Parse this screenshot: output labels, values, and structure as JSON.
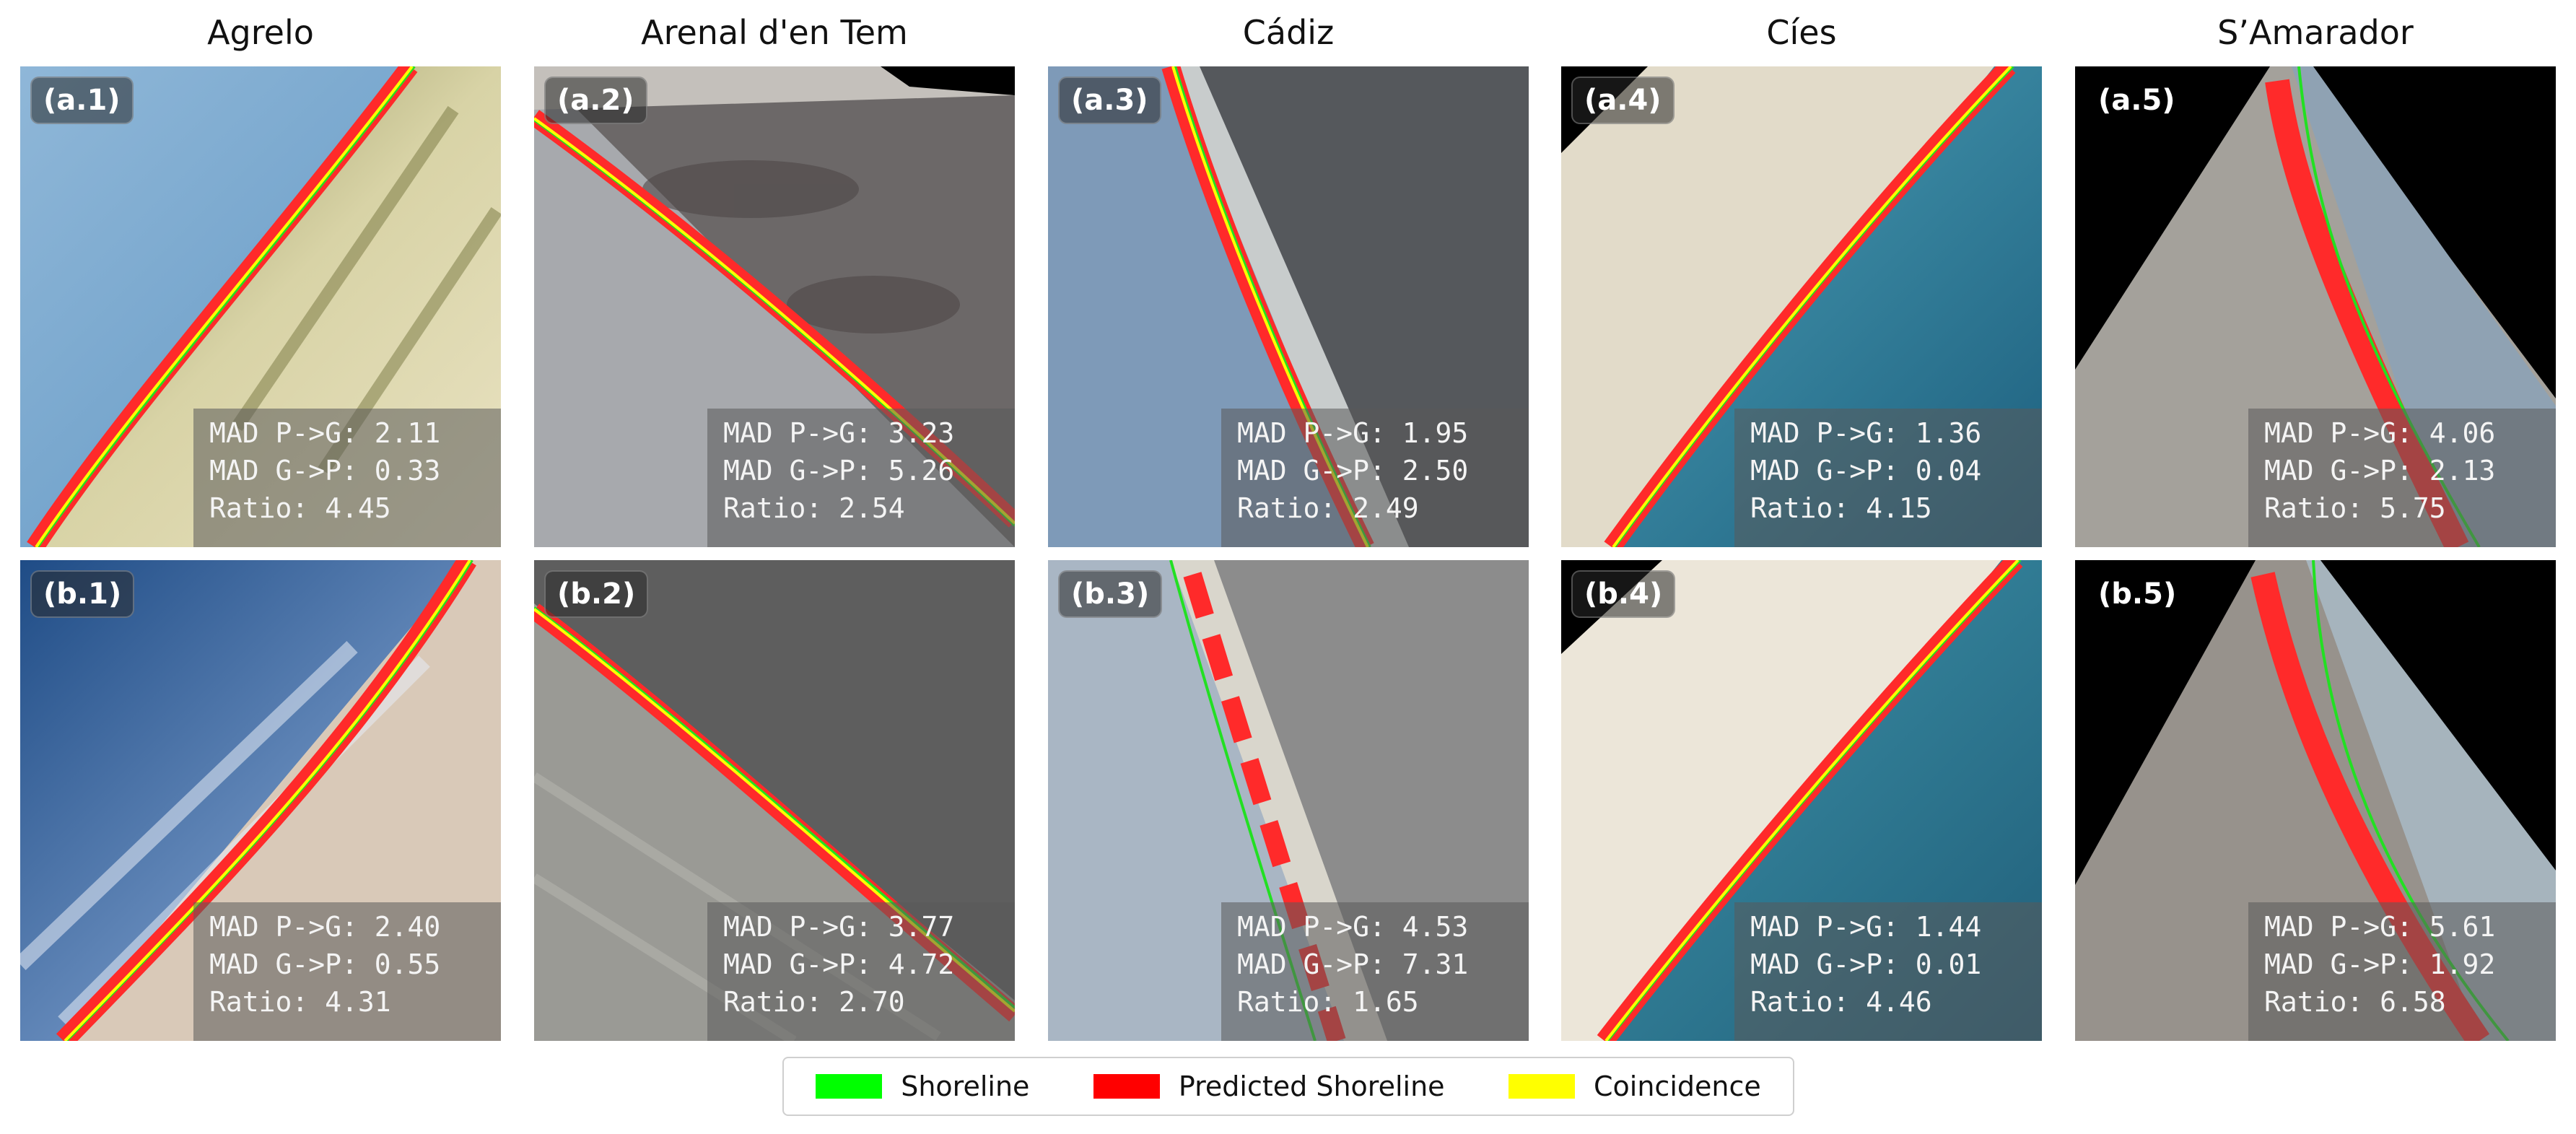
{
  "columns": [
    {
      "title": "Agrelo"
    },
    {
      "title": "Arenal d'en Tem"
    },
    {
      "title": "Cádiz"
    },
    {
      "title": "Cíes"
    },
    {
      "title": "S’Amarador"
    }
  ],
  "rows": [
    {
      "panels": [
        {
          "label": "(a.1)",
          "mad_pg": "MAD P->G: 2.11",
          "mad_gp": "MAD G->P: 0.33",
          "ratio": "Ratio: 4.45"
        },
        {
          "label": "(a.2)",
          "mad_pg": "MAD P->G: 3.23",
          "mad_gp": "MAD G->P: 5.26",
          "ratio": "Ratio: 2.54"
        },
        {
          "label": "(a.3)",
          "mad_pg": "MAD P->G: 1.95",
          "mad_gp": "MAD G->P: 2.50",
          "ratio": "Ratio: 2.49"
        },
        {
          "label": "(a.4)",
          "mad_pg": "MAD P->G: 1.36",
          "mad_gp": "MAD G->P: 0.04",
          "ratio": "Ratio: 4.15"
        },
        {
          "label": "(a.5)",
          "mad_pg": "MAD P->G: 4.06",
          "mad_gp": "MAD G->P: 2.13",
          "ratio": "Ratio: 5.75"
        }
      ]
    },
    {
      "panels": [
        {
          "label": "(b.1)",
          "mad_pg": "MAD P->G: 2.40",
          "mad_gp": "MAD G->P: 0.55",
          "ratio": "Ratio: 4.31"
        },
        {
          "label": "(b.2)",
          "mad_pg": "MAD P->G: 3.77",
          "mad_gp": "MAD G->P: 4.72",
          "ratio": "Ratio: 2.70"
        },
        {
          "label": "(b.3)",
          "mad_pg": "MAD P->G: 4.53",
          "mad_gp": "MAD G->P: 7.31",
          "ratio": "Ratio: 1.65"
        },
        {
          "label": "(b.4)",
          "mad_pg": "MAD P->G: 1.44",
          "mad_gp": "MAD G->P: 0.01",
          "ratio": "Ratio: 4.46"
        },
        {
          "label": "(b.5)",
          "mad_pg": "MAD P->G: 5.61",
          "mad_gp": "MAD G->P: 1.92",
          "ratio": "Ratio: 6.58"
        }
      ]
    }
  ],
  "legend": [
    {
      "label": "Shoreline",
      "color": "#00ff00"
    },
    {
      "label": "Predicted Shoreline",
      "color": "#ff0000"
    },
    {
      "label": "Coincidence",
      "color": "#ffff00"
    }
  ]
}
